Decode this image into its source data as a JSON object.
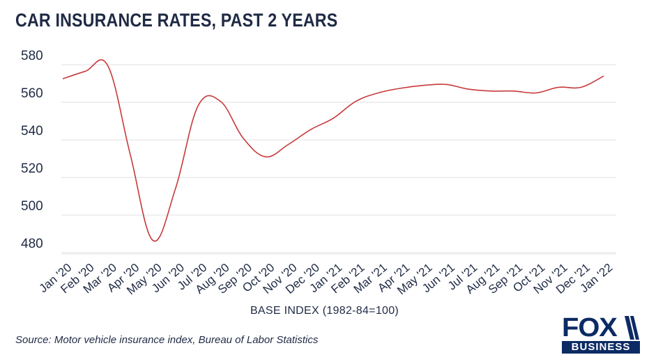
{
  "title": "CAR INSURANCE RATES, PAST 2 YEARS",
  "source": "Source: Motor vehicle insurance index, Bureau of Labor Statistics",
  "logo": {
    "top": "FOX",
    "bottom": "BUSINESS"
  },
  "colors": {
    "line": "#c8383a",
    "grid": "#e2e2e2",
    "text": "#1f2a44",
    "brand": "#0c2b64"
  },
  "chart_data": {
    "type": "line",
    "title": "CAR INSURANCE RATES, PAST 2 YEARS",
    "xlabel": "BASE INDEX (1982-84=100)",
    "ylabel": "",
    "ylim": [
      475,
      580
    ],
    "yticks": [
      480,
      500,
      520,
      540,
      560,
      580
    ],
    "grid": true,
    "categories": [
      "Jan '20",
      "Feb '20",
      "Mar '20",
      "Apr '20",
      "May '20",
      "Jun '20",
      "Jul '20",
      "Aug '20",
      "Sep '20",
      "Oct '20",
      "Nov '20",
      "Dec '20",
      "Jan '21",
      "Feb '21",
      "Mar '21",
      "Apr '21",
      "May '21",
      "Jun '21",
      "Jul '21",
      "Aug '21",
      "Sep '21",
      "Oct '21",
      "Nov '21",
      "Dec '21",
      "Jan '22"
    ],
    "series": [
      {
        "values": [
          572.5,
          576.5,
          579.5,
          532,
          486.5,
          514,
          558,
          560.5,
          541,
          531,
          537.5,
          545.5,
          551.5,
          560.5,
          565,
          567.5,
          569,
          569.5,
          567,
          566,
          566,
          565,
          568,
          568,
          574
        ]
      }
    ]
  }
}
